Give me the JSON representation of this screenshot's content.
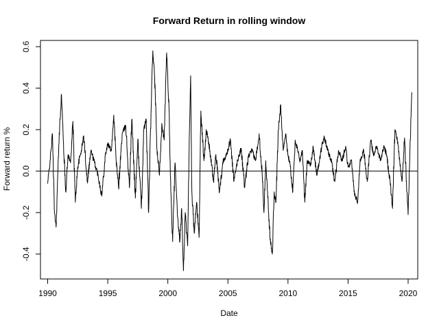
{
  "chart_data": {
    "type": "line",
    "title": "Forward Return in rolling window",
    "xlabel": "Date",
    "ylabel": "Forward return %",
    "xlim": [
      1989.4,
      2020.8
    ],
    "ylim": [
      -0.52,
      0.63
    ],
    "x_ticks": [
      1990,
      1995,
      2000,
      2005,
      2010,
      2015,
      2020
    ],
    "x_tick_labels": [
      "1990",
      "1995",
      "2000",
      "2005",
      "2010",
      "2015",
      "2020"
    ],
    "y_ticks": [
      -0.4,
      -0.2,
      0.0,
      0.2,
      0.4,
      0.6
    ],
    "y_tick_labels": [
      "-0.4",
      "-0.2",
      "0.0",
      "0.2",
      "0.4",
      "0.6"
    ],
    "reference_line_y": 0,
    "grid": false,
    "series_color": "#000000",
    "keypoints": [
      [
        1990.0,
        -0.06
      ],
      [
        1990.2,
        0.05
      ],
      [
        1990.4,
        0.18
      ],
      [
        1990.55,
        -0.18
      ],
      [
        1990.7,
        -0.27
      ],
      [
        1990.85,
        0.0
      ],
      [
        1991.0,
        0.22
      ],
      [
        1991.15,
        0.37
      ],
      [
        1991.3,
        0.15
      ],
      [
        1991.5,
        -0.1
      ],
      [
        1991.7,
        0.08
      ],
      [
        1991.9,
        0.04
      ],
      [
        1992.1,
        0.24
      ],
      [
        1992.3,
        -0.15
      ],
      [
        1992.5,
        0.02
      ],
      [
        1992.8,
        0.1
      ],
      [
        1993.0,
        0.17
      ],
      [
        1993.3,
        -0.05
      ],
      [
        1993.6,
        0.1
      ],
      [
        1993.9,
        0.04
      ],
      [
        1994.2,
        -0.02
      ],
      [
        1994.5,
        -0.12
      ],
      [
        1994.8,
        0.08
      ],
      [
        1995.0,
        0.13
      ],
      [
        1995.3,
        0.1
      ],
      [
        1995.5,
        0.27
      ],
      [
        1995.7,
        0.05
      ],
      [
        1995.9,
        -0.08
      ],
      [
        1996.2,
        0.18
      ],
      [
        1996.5,
        0.22
      ],
      [
        1996.8,
        -0.08
      ],
      [
        1997.0,
        0.25
      ],
      [
        1997.3,
        -0.13
      ],
      [
        1997.5,
        0.15
      ],
      [
        1997.8,
        -0.18
      ],
      [
        1998.0,
        0.2
      ],
      [
        1998.2,
        0.25
      ],
      [
        1998.4,
        -0.2
      ],
      [
        1998.6,
        0.28
      ],
      [
        1998.75,
        0.58
      ],
      [
        1998.9,
        0.46
      ],
      [
        1999.1,
        0.1
      ],
      [
        1999.3,
        -0.02
      ],
      [
        1999.5,
        0.23
      ],
      [
        1999.7,
        0.15
      ],
      [
        1999.9,
        0.57
      ],
      [
        2000.1,
        0.3
      ],
      [
        2000.25,
        -0.1
      ],
      [
        2000.4,
        -0.34
      ],
      [
        2000.6,
        0.04
      ],
      [
        2000.8,
        -0.22
      ],
      [
        2001.0,
        -0.34
      ],
      [
        2001.15,
        -0.18
      ],
      [
        2001.3,
        -0.48
      ],
      [
        2001.45,
        -0.2
      ],
      [
        2001.65,
        -0.36
      ],
      [
        2001.8,
        0.2
      ],
      [
        2001.9,
        0.46
      ],
      [
        2002.0,
        -0.1
      ],
      [
        2002.2,
        -0.3
      ],
      [
        2002.4,
        -0.15
      ],
      [
        2002.6,
        -0.32
      ],
      [
        2002.75,
        0.29
      ],
      [
        2003.0,
        0.05
      ],
      [
        2003.2,
        0.2
      ],
      [
        2003.5,
        0.1
      ],
      [
        2003.8,
        -0.05
      ],
      [
        2004.0,
        0.08
      ],
      [
        2004.3,
        -0.1
      ],
      [
        2004.6,
        0.05
      ],
      [
        2004.9,
        0.08
      ],
      [
        2005.2,
        0.15
      ],
      [
        2005.5,
        -0.05
      ],
      [
        2005.8,
        0.05
      ],
      [
        2006.1,
        0.11
      ],
      [
        2006.4,
        -0.08
      ],
      [
        2006.7,
        0.07
      ],
      [
        2007.0,
        0.1
      ],
      [
        2007.3,
        0.05
      ],
      [
        2007.6,
        0.18
      ],
      [
        2007.9,
        -0.05
      ],
      [
        2008.0,
        -0.2
      ],
      [
        2008.15,
        0.05
      ],
      [
        2008.3,
        -0.1
      ],
      [
        2008.5,
        -0.32
      ],
      [
        2008.7,
        -0.4
      ],
      [
        2008.85,
        -0.1
      ],
      [
        2009.0,
        -0.15
      ],
      [
        2009.2,
        0.2
      ],
      [
        2009.4,
        0.32
      ],
      [
        2009.6,
        0.1
      ],
      [
        2009.8,
        0.18
      ],
      [
        2010.0,
        0.08
      ],
      [
        2010.2,
        0.02
      ],
      [
        2010.4,
        -0.1
      ],
      [
        2010.6,
        0.15
      ],
      [
        2010.8,
        0.1
      ],
      [
        2011.0,
        0.05
      ],
      [
        2011.2,
        0.1
      ],
      [
        2011.4,
        -0.15
      ],
      [
        2011.6,
        0.05
      ],
      [
        2011.9,
        0.03
      ],
      [
        2012.1,
        0.12
      ],
      [
        2012.4,
        -0.02
      ],
      [
        2012.7,
        0.08
      ],
      [
        2013.0,
        0.17
      ],
      [
        2013.3,
        0.1
      ],
      [
        2013.6,
        0.05
      ],
      [
        2013.9,
        -0.05
      ],
      [
        2014.2,
        0.1
      ],
      [
        2014.5,
        0.05
      ],
      [
        2014.8,
        0.12
      ],
      [
        2015.0,
        0.02
      ],
      [
        2015.3,
        0.05
      ],
      [
        2015.5,
        -0.1
      ],
      [
        2015.8,
        -0.15
      ],
      [
        2016.0,
        0.05
      ],
      [
        2016.3,
        0.1
      ],
      [
        2016.6,
        -0.05
      ],
      [
        2016.9,
        0.15
      ],
      [
        2017.1,
        0.08
      ],
      [
        2017.4,
        0.12
      ],
      [
        2017.7,
        0.05
      ],
      [
        2018.0,
        0.12
      ],
      [
        2018.2,
        0.08
      ],
      [
        2018.5,
        -0.05
      ],
      [
        2018.7,
        -0.18
      ],
      [
        2018.9,
        0.2
      ],
      [
        2019.1,
        0.15
      ],
      [
        2019.3,
        0.05
      ],
      [
        2019.5,
        -0.05
      ],
      [
        2019.7,
        0.16
      ],
      [
        2019.9,
        -0.1
      ],
      [
        2020.0,
        -0.21
      ],
      [
        2020.15,
        0.1
      ],
      [
        2020.3,
        0.38
      ]
    ]
  }
}
